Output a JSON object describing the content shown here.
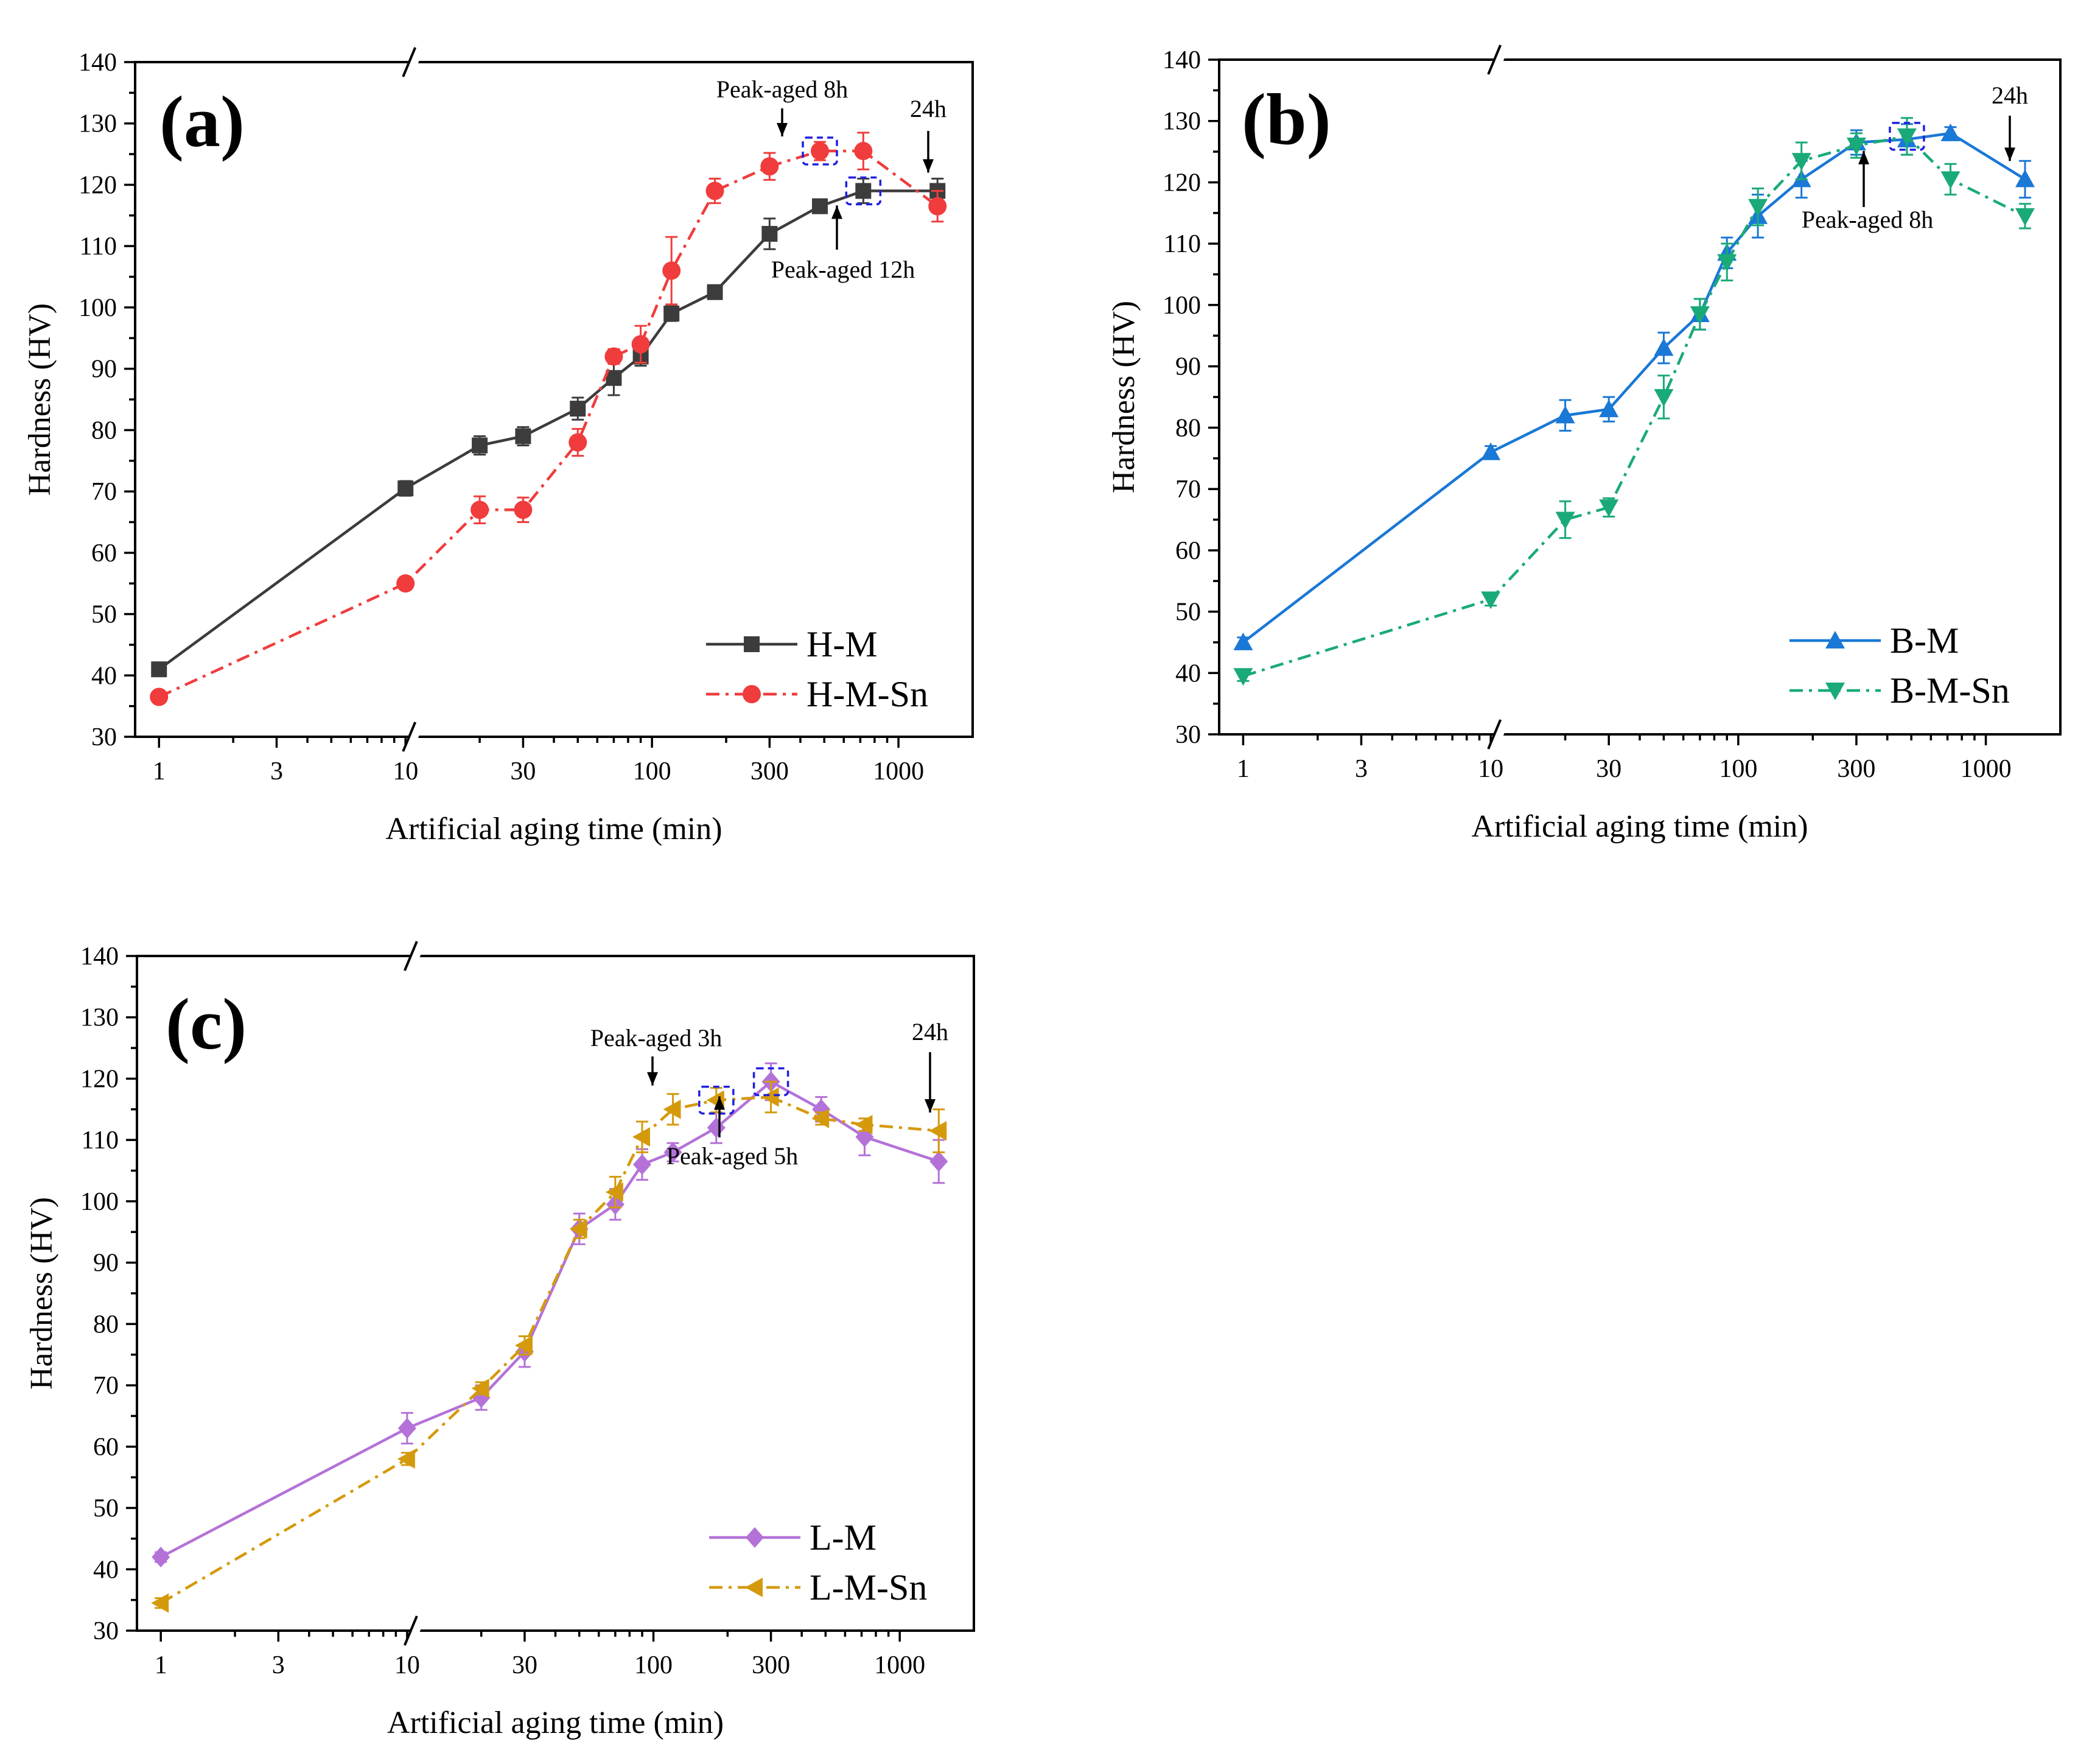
{
  "chart_data": [
    {
      "id": "a",
      "type": "line",
      "panel_label": "(a)",
      "xlabel": "Artificial aging time (min)",
      "ylabel": "Hardness (HV)",
      "xscale": "log",
      "xlim": [
        0.8,
        2000
      ],
      "ylim": [
        30,
        140
      ],
      "yticks": [
        30,
        40,
        50,
        60,
        70,
        80,
        90,
        100,
        110,
        120,
        130,
        140
      ],
      "xticks": [
        1,
        3,
        10,
        30,
        100,
        300,
        1000
      ],
      "xtick_labels": [
        "1",
        "3",
        "10",
        "30",
        "100",
        "300",
        "1000"
      ],
      "legend_position": "bottom-right",
      "series": [
        {
          "name": "H-M",
          "color": "#3c3c3c",
          "marker": "square",
          "dash": "solid",
          "x": [
            1,
            10,
            20,
            30,
            50,
            70,
            90,
            120,
            180,
            300,
            480,
            720,
            1440
          ],
          "y": [
            41,
            70.5,
            77.5,
            79,
            83.5,
            88.5,
            92,
            99,
            102.5,
            112,
            116.5,
            119,
            119
          ],
          "err": [
            0.8,
            1.2,
            1.5,
            1.5,
            1.8,
            2.8,
            1.5,
            1.2,
            0.8,
            2.5,
            1,
            2,
            2
          ]
        },
        {
          "name": "H-M-Sn",
          "color": "#f03c3c",
          "marker": "circle",
          "dash": "dashdot",
          "x": [
            1,
            10,
            20,
            30,
            50,
            70,
            90,
            120,
            180,
            300,
            480,
            720,
            1440
          ],
          "y": [
            36.5,
            55,
            67,
            67,
            78,
            92,
            94,
            106,
            119,
            123,
            125.5,
            125.5,
            116.5
          ],
          "err": [
            0.8,
            1,
            2.2,
            2,
            2.2,
            1.2,
            3,
            5.5,
            2,
            2.2,
            1.5,
            3,
            2.5
          ]
        }
      ],
      "annotations": [
        {
          "text": "Peak-aged 8h",
          "x": 480,
          "y": 125.5,
          "arrow": "down"
        },
        {
          "text": "Peak-aged 12h",
          "x": 720,
          "y": 119,
          "arrow": "up"
        },
        {
          "text": "24h",
          "x": 1440,
          "y": 119,
          "arrow": "down"
        }
      ]
    },
    {
      "id": "b",
      "type": "line",
      "panel_label": "(b)",
      "xlabel": "Artificial aging time (min)",
      "ylabel": "Hardness (HV)",
      "xscale": "log",
      "xlim": [
        0.8,
        2000
      ],
      "ylim": [
        30,
        140
      ],
      "yticks": [
        30,
        40,
        50,
        60,
        70,
        80,
        90,
        100,
        110,
        120,
        130,
        140
      ],
      "xticks": [
        1,
        3,
        10,
        30,
        100,
        300,
        1000
      ],
      "xtick_labels": [
        "1",
        "3",
        "10",
        "30",
        "100",
        "300",
        "1000"
      ],
      "legend_position": "bottom-right",
      "series": [
        {
          "name": "B-M",
          "color": "#1a78d6",
          "marker": "triangle-up",
          "dash": "solid",
          "x": [
            1,
            10,
            20,
            30,
            50,
            70,
            90,
            120,
            180,
            300,
            480,
            720,
            1440
          ],
          "y": [
            45,
            76,
            82,
            83,
            93,
            98.5,
            108.5,
            114.5,
            120.5,
            126.5,
            127,
            128,
            120.5
          ],
          "err": [
            0.8,
            1,
            2.5,
            2,
            2.5,
            2.5,
            2.5,
            3.5,
            3,
            2,
            2.5,
            1,
            3
          ]
        },
        {
          "name": "B-M-Sn",
          "color": "#1aaa78",
          "marker": "triangle-down",
          "dash": "dashdot",
          "x": [
            1,
            10,
            20,
            30,
            50,
            70,
            90,
            120,
            180,
            300,
            480,
            720,
            1440
          ],
          "y": [
            39.5,
            52,
            65,
            67,
            85,
            98.5,
            107,
            116,
            123.5,
            126,
            127.5,
            120.5,
            114.5
          ],
          "err": [
            0.8,
            1,
            3,
            1.5,
            3.5,
            2.5,
            3,
            3,
            3,
            2,
            3,
            2.5,
            2
          ]
        }
      ],
      "annotations": [
        {
          "text": "Peak-aged 8h",
          "x": 480,
          "y": 127.5,
          "arrow": "up"
        },
        {
          "text": "24h",
          "x": 1440,
          "y": 120.5,
          "arrow": "down"
        }
      ]
    },
    {
      "id": "c",
      "type": "line",
      "panel_label": "(c)",
      "xlabel": "Artificial aging time (min)",
      "ylabel": "Hardness (HV)",
      "xscale": "log",
      "xlim": [
        0.8,
        2000
      ],
      "ylim": [
        30,
        140
      ],
      "yticks": [
        30,
        40,
        50,
        60,
        70,
        80,
        90,
        100,
        110,
        120,
        130,
        140
      ],
      "xticks": [
        1,
        3,
        10,
        30,
        100,
        300,
        1000
      ],
      "xtick_labels": [
        "1",
        "3",
        "10",
        "30",
        "100",
        "300",
        "1000"
      ],
      "legend_position": "bottom-right",
      "series": [
        {
          "name": "L-M",
          "color": "#b472d8",
          "marker": "diamond",
          "dash": "solid",
          "x": [
            1,
            10,
            20,
            30,
            50,
            70,
            90,
            120,
            180,
            300,
            480,
            720,
            1440
          ],
          "y": [
            42,
            63,
            68,
            75.5,
            95.5,
            99.5,
            106,
            108,
            112,
            119.5,
            115,
            110.5,
            106.5
          ],
          "err": [
            0.8,
            2.5,
            2,
            2.5,
            2.5,
            2.5,
            2.5,
            1.5,
            2.5,
            3,
            2,
            3,
            3.5
          ]
        },
        {
          "name": "L-M-Sn",
          "color": "#d49a0c",
          "marker": "triangle-left",
          "dash": "dashdot",
          "x": [
            1,
            10,
            20,
            30,
            50,
            70,
            90,
            120,
            180,
            300,
            480,
            720,
            1440
          ],
          "y": [
            34.5,
            58,
            69.5,
            76.5,
            95.5,
            101.5,
            110.5,
            115,
            116.5,
            117,
            113.5,
            112.5,
            111.5
          ],
          "err": [
            0.8,
            1,
            1,
            1.5,
            1.5,
            2.5,
            2.5,
            2.5,
            2,
            2.5,
            1,
            1,
            3.5
          ]
        }
      ],
      "annotations": [
        {
          "text": "Peak-aged 3h",
          "x": 180,
          "y": 116.5,
          "arrow": "down"
        },
        {
          "text": "Peak-aged 5h",
          "x": 300,
          "y": 119.5,
          "arrow": "up"
        },
        {
          "text": "24h",
          "x": 1440,
          "y": 111.5,
          "arrow": "down"
        }
      ]
    }
  ]
}
